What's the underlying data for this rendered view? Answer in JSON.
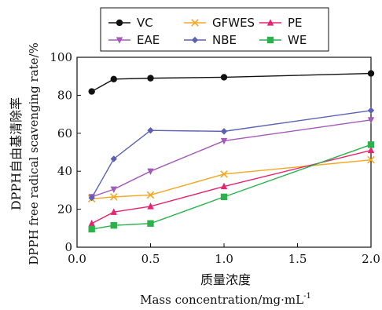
{
  "chart_data": {
    "type": "line",
    "xlabel_cn": "质量浓度",
    "xlabel_en": "Mass  concentration/mg·mL",
    "xlabel_en_sup": "-1",
    "ylabel_cn": "DPPH自由基清除率",
    "ylabel_en": "DPPH  free  radical  scavenging  rate/%",
    "xlim": [
      0.0,
      2.0
    ],
    "ylim": [
      0,
      100
    ],
    "xticks": [
      "0.0",
      "0.5",
      "1.0",
      "1.5",
      "2.0"
    ],
    "yticks": [
      "0",
      "20",
      "40",
      "60",
      "80",
      "100"
    ],
    "legend_position": "top",
    "series": [
      {
        "name": "VC",
        "color": "#111111",
        "marker": "circle",
        "x": [
          0.1,
          0.25,
          0.5,
          1.0,
          2.0
        ],
        "y": [
          82,
          88.5,
          89,
          89.5,
          91.5
        ]
      },
      {
        "name": "GFWES",
        "color": "#f5a623",
        "marker": "x",
        "x": [
          0.1,
          0.25,
          0.5,
          1.0,
          2.0
        ],
        "y": [
          25.5,
          26.5,
          27.5,
          38.5,
          46
        ]
      },
      {
        "name": "PE",
        "color": "#e8236f",
        "marker": "triangle",
        "x": [
          0.1,
          0.25,
          0.5,
          1.0,
          2.0
        ],
        "y": [
          12.5,
          18.5,
          21.5,
          32,
          51
        ]
      },
      {
        "name": "EAE",
        "color": "#a45ab8",
        "marker": "tri-down",
        "x": [
          0.1,
          0.25,
          0.5,
          1.0,
          2.0
        ],
        "y": [
          26.5,
          30.5,
          40,
          56,
          67
        ]
      },
      {
        "name": "NBE",
        "color": "#5b62b3",
        "marker": "diamond",
        "x": [
          0.1,
          0.25,
          0.5,
          1.0,
          2.0
        ],
        "y": [
          26,
          46.5,
          61.5,
          61,
          72
        ]
      },
      {
        "name": "WE",
        "color": "#2bb24c",
        "marker": "square",
        "x": [
          0.1,
          0.25,
          0.5,
          1.0,
          2.0
        ],
        "y": [
          9.5,
          11.5,
          12.5,
          26.5,
          54
        ]
      }
    ]
  }
}
